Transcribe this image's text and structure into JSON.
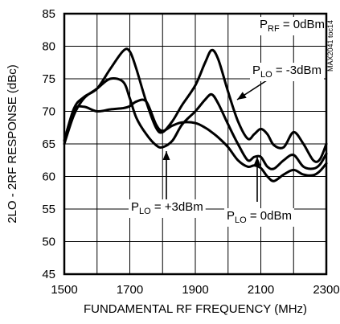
{
  "chart_data": {
    "type": "line",
    "title": "",
    "xlabel": "FUNDAMENTAL RF FREQUENCY (MHz)",
    "ylabel": "2LO - 2RF RESPONSE (dBc)",
    "xlim": [
      1500,
      2300
    ],
    "ylim": [
      45,
      85
    ],
    "xticks": [
      1500,
      1700,
      1900,
      2100,
      2300
    ],
    "yticks": [
      45,
      50,
      55,
      60,
      65,
      70,
      75,
      80,
      85
    ],
    "grid": true,
    "watermark": "MAX2041 toc14",
    "annotations": [
      {
        "id": "prf",
        "prefix": "P",
        "sub": "RF",
        "suffix": " = 0dBm"
      },
      {
        "id": "plo-m3",
        "prefix": "P",
        "sub": "LO",
        "suffix": " = -3dBm"
      },
      {
        "id": "plo-p3",
        "prefix": "P",
        "sub": "LO",
        "suffix": " = +3dBm"
      },
      {
        "id": "plo-0",
        "prefix": "P",
        "sub": "LO",
        "suffix": " = 0dBm"
      }
    ],
    "series": [
      {
        "name": "PLO = -3dBm",
        "x": [
          1500,
          1530,
          1560,
          1600,
          1640,
          1680,
          1700,
          1720,
          1750,
          1780,
          1800,
          1830,
          1860,
          1900,
          1930,
          1950,
          1970,
          2000,
          2030,
          2060,
          2080,
          2100,
          2120,
          2140,
          2170,
          2200,
          2230,
          2260,
          2280,
          2300
        ],
        "y": [
          65.5,
          70.5,
          72.2,
          73.5,
          76.5,
          79.3,
          79.2,
          76.5,
          71.5,
          67.5,
          66.8,
          68.5,
          71,
          74,
          77.5,
          79.4,
          78,
          73,
          68.5,
          65.8,
          66.5,
          67.3,
          66.5,
          64.8,
          64.5,
          66.8,
          65,
          62.5,
          62.6,
          65
        ]
      },
      {
        "name": "PLO = 0dBm",
        "x": [
          1500,
          1530,
          1560,
          1600,
          1640,
          1680,
          1700,
          1720,
          1750,
          1780,
          1800,
          1830,
          1860,
          1900,
          1930,
          1950,
          1970,
          2000,
          2030,
          2060,
          2080,
          2100,
          2120,
          2140,
          2170,
          2200,
          2230,
          2260,
          2280,
          2300
        ],
        "y": [
          65,
          69.5,
          72,
          73.5,
          75,
          74.5,
          72,
          69,
          66.5,
          64.8,
          64.5,
          65.5,
          68,
          70,
          71.8,
          72.6,
          71.2,
          68,
          65,
          62.5,
          63,
          63,
          61.5,
          61.2,
          62.5,
          63.3,
          61.5,
          61.2,
          61.8,
          63.5
        ]
      },
      {
        "name": "PLO = +3dBm",
        "x": [
          1500,
          1530,
          1560,
          1600,
          1640,
          1680,
          1700,
          1720,
          1750,
          1780,
          1800,
          1830,
          1860,
          1900,
          1930,
          1950,
          1970,
          2000,
          2030,
          2060,
          2080,
          2100,
          2120,
          2140,
          2170,
          2200,
          2230,
          2260,
          2280,
          2300
        ],
        "y": [
          65.5,
          70.2,
          70.7,
          70,
          70.3,
          70.5,
          70.8,
          71.5,
          71.5,
          68,
          67,
          67.8,
          68.3,
          68.2,
          67.5,
          66.8,
          66,
          64.5,
          62.5,
          61.5,
          61.7,
          61.3,
          60,
          59.3,
          60.3,
          61,
          60.3,
          60.2,
          60.8,
          62
        ]
      }
    ]
  }
}
